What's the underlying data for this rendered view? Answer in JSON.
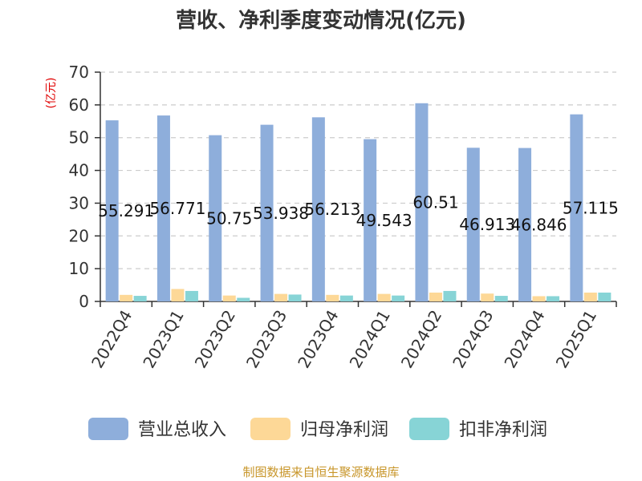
{
  "chart_data": {
    "type": "bar",
    "title": "营收、净利季度变动情况(亿元)",
    "unit_label": "(亿元)",
    "categories": [
      "2022Q4",
      "2023Q1",
      "2023Q2",
      "2023Q3",
      "2023Q4",
      "2024Q1",
      "2024Q2",
      "2024Q3",
      "2024Q4",
      "2025Q1"
    ],
    "series": [
      {
        "name": "营业总收入",
        "color": "#8eaedb",
        "values": [
          55.291,
          56.771,
          50.75,
          53.938,
          56.213,
          49.543,
          60.51,
          46.913,
          46.846,
          57.115
        ]
      },
      {
        "name": "归母净利润",
        "color": "#fdd897",
        "values": [
          2.0,
          3.8,
          1.8,
          2.3,
          2.0,
          2.3,
          2.7,
          2.4,
          1.6,
          2.7
        ]
      },
      {
        "name": "扣非净利润",
        "color": "#87d4d6",
        "values": [
          1.7,
          3.2,
          1.1,
          2.1,
          1.8,
          1.8,
          3.2,
          1.7,
          1.6,
          2.7
        ]
      }
    ],
    "data_labels": [
      "55.291",
      "56.771",
      "50.75",
      "53.938",
      "56.213",
      "49.543",
      "60.51",
      "46.913",
      "46.846",
      "57.115"
    ],
    "ylim": [
      0,
      70
    ],
    "yticks": [
      "0",
      "10",
      "20",
      "30",
      "40",
      "50",
      "60",
      "70"
    ],
    "grid": true,
    "legend_position": "bottom",
    "source": "制图数据来自恒生聚源数据库"
  }
}
